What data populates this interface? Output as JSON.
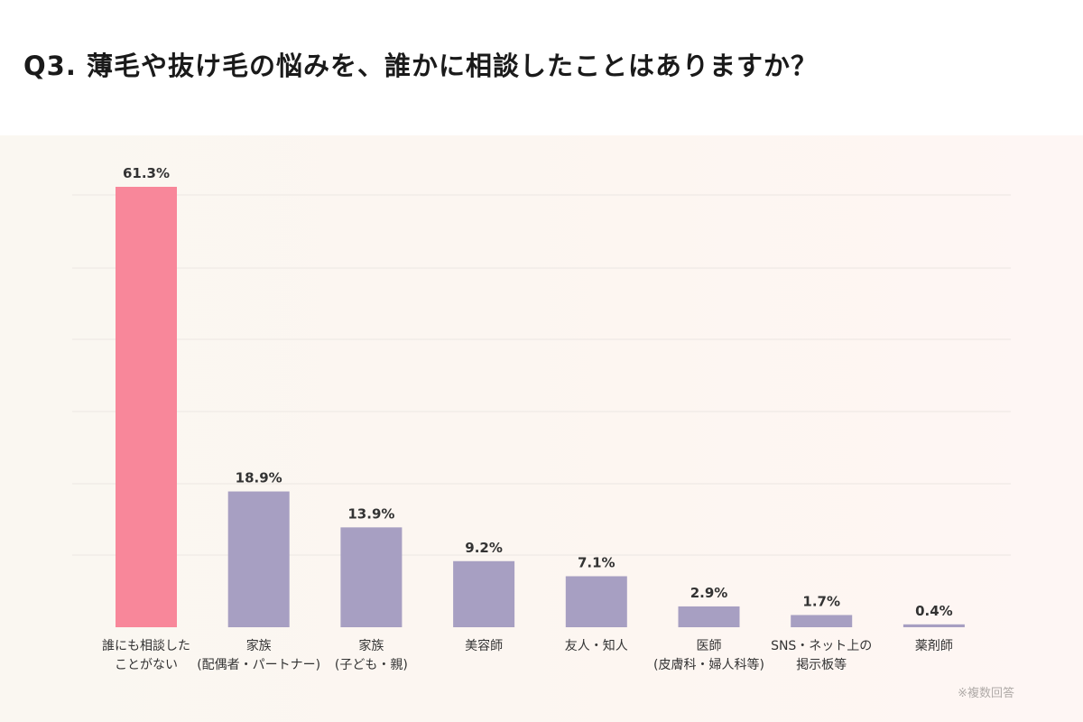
{
  "title": "Q3. 薄毛や抜け毛の悩みを、誰かに相談したことはありますか？",
  "footnote": "※複数回答",
  "colors": {
    "highlight": "#f8879a",
    "default": "#a79fc2",
    "value_label": "#333333",
    "category_label": "#333333",
    "grid": "#ece7e2",
    "background": "#faf7f1"
  },
  "chart_data": {
    "type": "bar",
    "title": "Q3. 薄毛や抜け毛の悩みを、誰かに相談したことはありますか？",
    "xlabel": "",
    "ylabel": "",
    "unit": "%",
    "ylim": [
      0,
      61.3
    ],
    "grid": true,
    "legend": "none",
    "categories": [
      [
        "誰にも相談した",
        "ことがない"
      ],
      [
        "家族",
        "(配偶者・パートナー)"
      ],
      [
        "家族",
        "(子ども・親)"
      ],
      [
        "美容師"
      ],
      [
        "友人・知人"
      ],
      [
        "医師",
        "(皮膚科・婦人科等)"
      ],
      [
        "SNS・ネット上の",
        "掲示板等"
      ],
      [
        "薬剤師"
      ]
    ],
    "values": [
      61.3,
      18.9,
      13.9,
      9.2,
      7.1,
      2.9,
      1.7,
      0.4
    ],
    "value_labels": [
      "61.3%",
      "18.9%",
      "13.9%",
      "9.2%",
      "7.1%",
      "2.9%",
      "1.7%",
      "0.4%"
    ],
    "highlighted": [
      0
    ]
  }
}
